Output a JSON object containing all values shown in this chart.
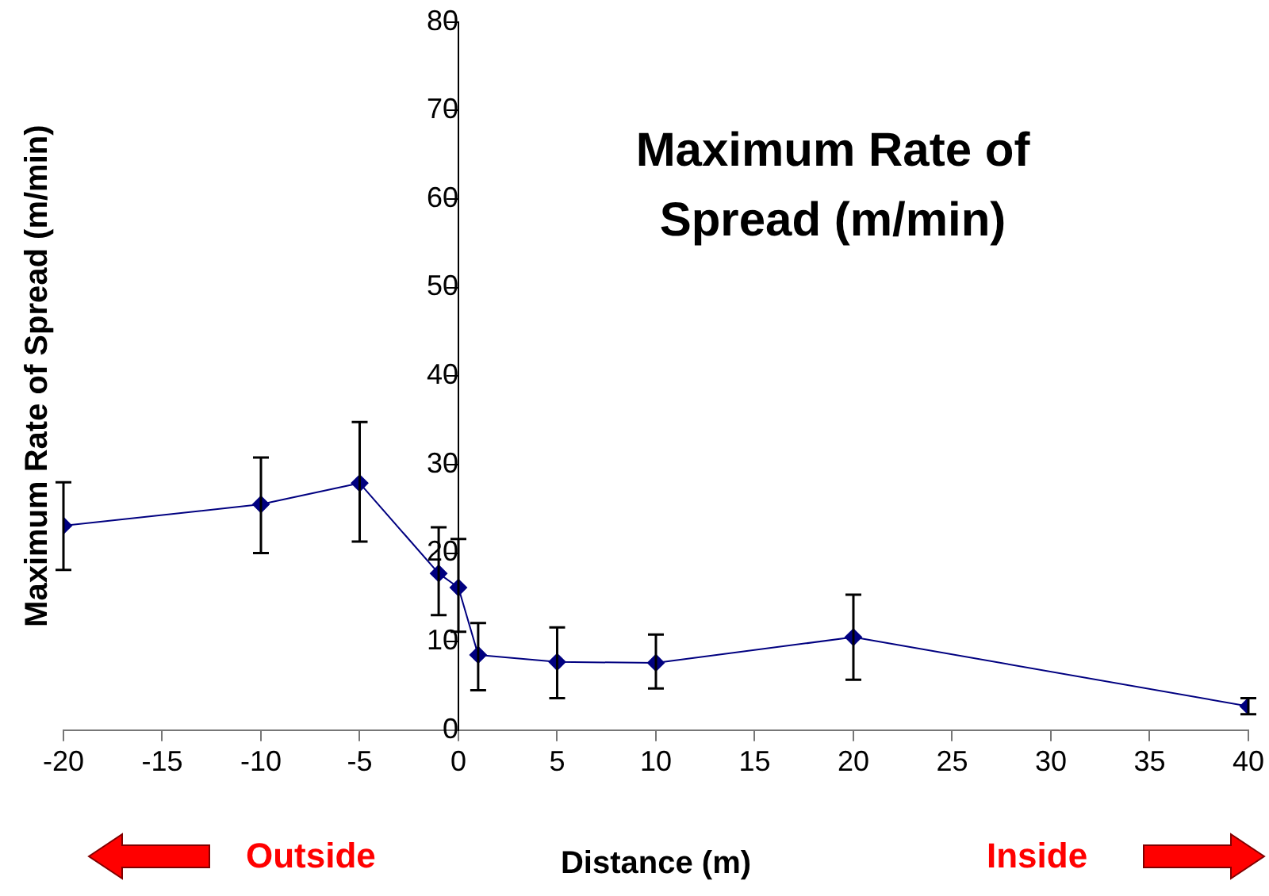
{
  "chart_data": {
    "type": "line",
    "title": "Maximum Rate of Spread (m/min)",
    "xlabel": "Distance (m)",
    "ylabel": "Maximum Rate of Spread (m/min)",
    "x": [
      -20,
      -10,
      -5,
      -1,
      0,
      1,
      5,
      10,
      20,
      40
    ],
    "series": [
      {
        "color": "#000080",
        "values": [
          23.1,
          25.5,
          27.9,
          17.7,
          16.1,
          8.5,
          7.7,
          7.6,
          10.5,
          2.7
        ],
        "errors": [
          [
            18.1,
            28.0
          ],
          [
            20.0,
            30.8
          ],
          [
            21.3,
            34.8
          ],
          [
            13.0,
            22.9
          ],
          [
            11.1,
            21.6
          ],
          [
            4.5,
            12.1
          ],
          [
            3.6,
            11.6
          ],
          [
            4.7,
            10.8
          ],
          [
            5.7,
            15.3
          ],
          [
            1.8,
            3.6
          ]
        ]
      }
    ],
    "xlim": [
      -20,
      40
    ],
    "xticks": [
      -20,
      -15,
      -10,
      -5,
      0,
      5,
      10,
      15,
      20,
      25,
      30,
      35,
      40
    ],
    "ylim": [
      0,
      80
    ],
    "yticks": [
      0,
      10,
      20,
      30,
      40,
      50,
      60,
      70,
      80
    ],
    "grid": false,
    "legend": false,
    "marker": "diamond",
    "line_style": "solid",
    "annotations": [
      "Outside",
      "Inside"
    ]
  }
}
